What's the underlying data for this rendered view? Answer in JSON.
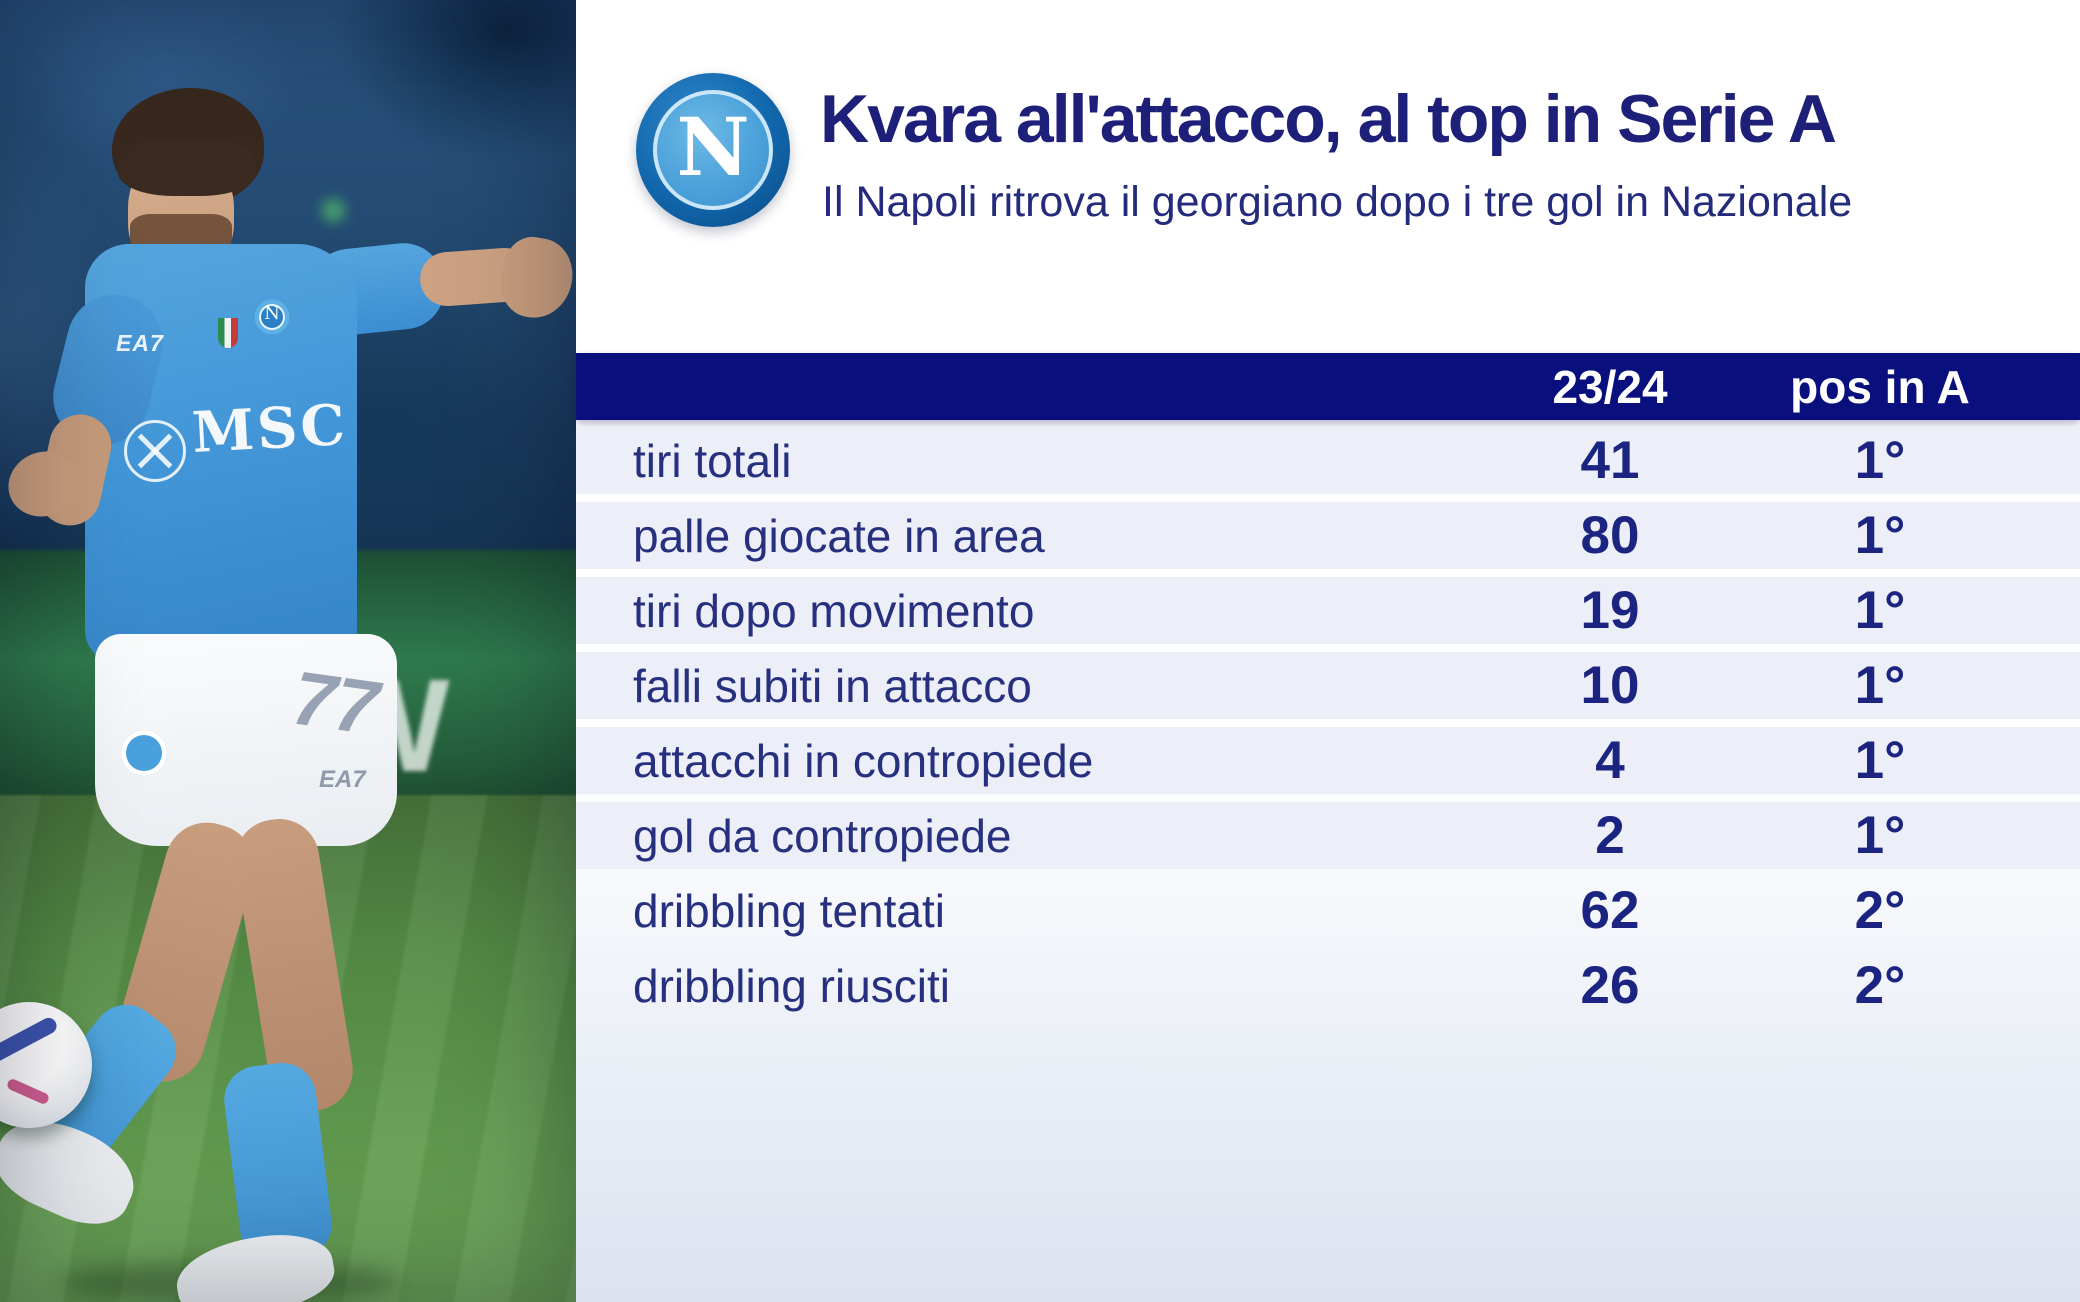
{
  "header": {
    "logo_letter": "N",
    "title": "Kvara all'attacco, al top in Serie A",
    "subtitle": "Il Napoli ritrova il georgiano dopo i tre gol in Nazionale"
  },
  "table": {
    "columns": [
      "",
      "23/24",
      "pos in A"
    ],
    "rows": [
      {
        "label": "tiri totali",
        "value": "41",
        "pos": "1°"
      },
      {
        "label": "palle giocate in area",
        "value": "80",
        "pos": "1°"
      },
      {
        "label": "tiri dopo movimento",
        "value": "19",
        "pos": "1°"
      },
      {
        "label": "falli subiti in attacco",
        "value": "10",
        "pos": "1°"
      },
      {
        "label": "attacchi in contropiede",
        "value": "4",
        "pos": "1°"
      },
      {
        "label": "gol da contropiede",
        "value": "2",
        "pos": "1°"
      },
      {
        "label": "dribbling tentati",
        "value": "62",
        "pos": "2°"
      },
      {
        "label": "dribbling riusciti",
        "value": "26",
        "pos": "2°"
      }
    ]
  },
  "photo": {
    "sponsor": "MSC",
    "chest_brand": "EA7",
    "shorts_brand": "EA7",
    "shorts_number": "77",
    "board_letter": "W",
    "crest_letter": "N"
  },
  "chart_data": {
    "type": "table",
    "title": "Kvara all'attacco, al top in Serie A",
    "subtitle": "Il Napoli ritrova il georgiano dopo i tre gol in Nazionale",
    "columns": [
      "",
      "23/24",
      "pos in A"
    ],
    "rows": [
      [
        "tiri totali",
        41,
        "1°"
      ],
      [
        "palle giocate in area",
        80,
        "1°"
      ],
      [
        "tiri dopo movimento",
        19,
        "1°"
      ],
      [
        "falli subiti in attacco",
        10,
        "1°"
      ],
      [
        "attacchi in contropiede",
        4,
        "1°"
      ],
      [
        "gol da contropiede",
        2,
        "1°"
      ],
      [
        "dribbling tentati",
        62,
        "2°"
      ],
      [
        "dribbling riusciti",
        26,
        "2°"
      ]
    ],
    "legend": null,
    "notes": "rows 1-6 highlighted with light lavender bands (1st place), rows 7-8 unshaded (2nd place)"
  },
  "colors": {
    "header_band": "#0a0f7e",
    "row_band": "#eceef8",
    "label_text": "#27307f",
    "value_text": "#1b2480",
    "title_text": "#1e1f78",
    "header_text": "#ffffff",
    "napoli_azure": "#4a9fd8",
    "panel_bottom_gradient": "#dce2ef",
    "pitch_green": "#5d8f4c"
  }
}
